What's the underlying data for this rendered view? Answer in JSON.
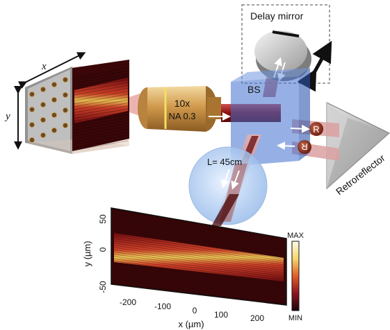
{
  "labels": {
    "delay_mirror": "Delay mirror",
    "bs": "BS",
    "objective_mag": "10x",
    "objective_na": "NA 0.3",
    "lens_distance": "L= 45cm",
    "retroreflector": "Retroreflector",
    "sample_x": "x",
    "sample_y": "y",
    "r_marker": "R"
  },
  "image_plot": {
    "xlabel": "x (µm)",
    "ylabel": "y (µm)",
    "xticks": [
      "-200",
      "-100",
      "0",
      "100",
      "200"
    ],
    "yticks": [
      "50",
      "0",
      "-50"
    ],
    "colorbar_max": "MAX",
    "colorbar_min": "MIN"
  },
  "colors": {
    "beam": "#8b1010",
    "beamsplitter": "#3f6fcf",
    "objective": "#c88a3a",
    "lens": "#aac8ee"
  }
}
